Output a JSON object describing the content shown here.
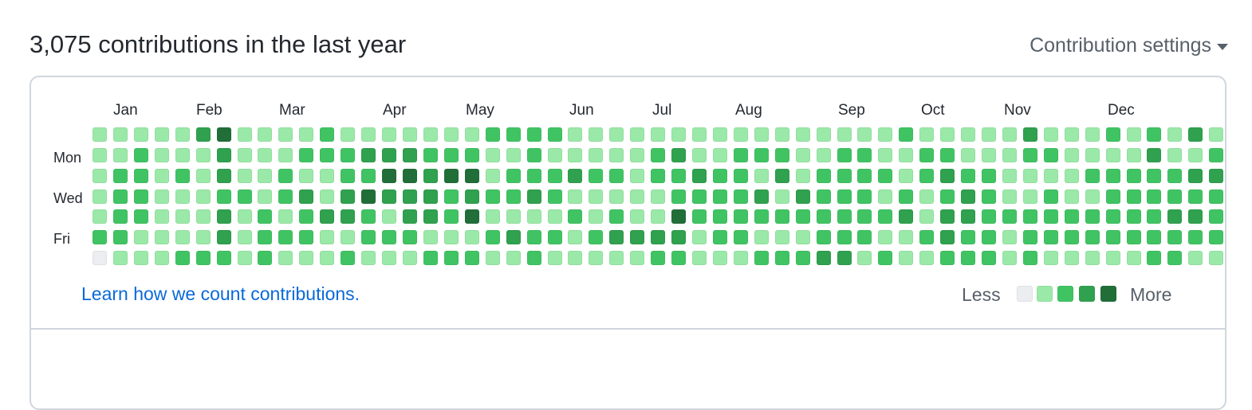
{
  "header": {
    "title": "3,075 contributions in the last year",
    "settings_label": "Contribution settings",
    "settings_icon": "caret-down-icon"
  },
  "calendar": {
    "months": [
      "Jan",
      "Feb",
      "Mar",
      "Apr",
      "May",
      "Jun",
      "Jul",
      "Aug",
      "Sep",
      "Oct",
      "Nov",
      "Dec"
    ],
    "day_labels": [
      "Mon",
      "Wed",
      "Fri"
    ],
    "levels": [
      "1111134111121111111222211111111111111112111113111212131",
      "1121113111222333222112111112311222112211221112211113112",
      "1221213112112244344122232212232213122221232211112222233",
      "1221112212313433323223211111222231322212123211211222222",
      "1221113121233213324111121211422222222223133222222222332",
      "2211113122211222111232212333312211122211232212222222222",
      "0111222121112111222112111112211122233121122212111112211"
    ]
  },
  "palette": {
    "level_0": "#ebedf0",
    "level_1": "#9be9a8",
    "level_2": "#40c463",
    "level_3": "#30a14e",
    "level_4": "#216e39"
  },
  "footer": {
    "learn_link": "Learn how we count contributions.",
    "legend_less": "Less",
    "legend_more": "More"
  }
}
